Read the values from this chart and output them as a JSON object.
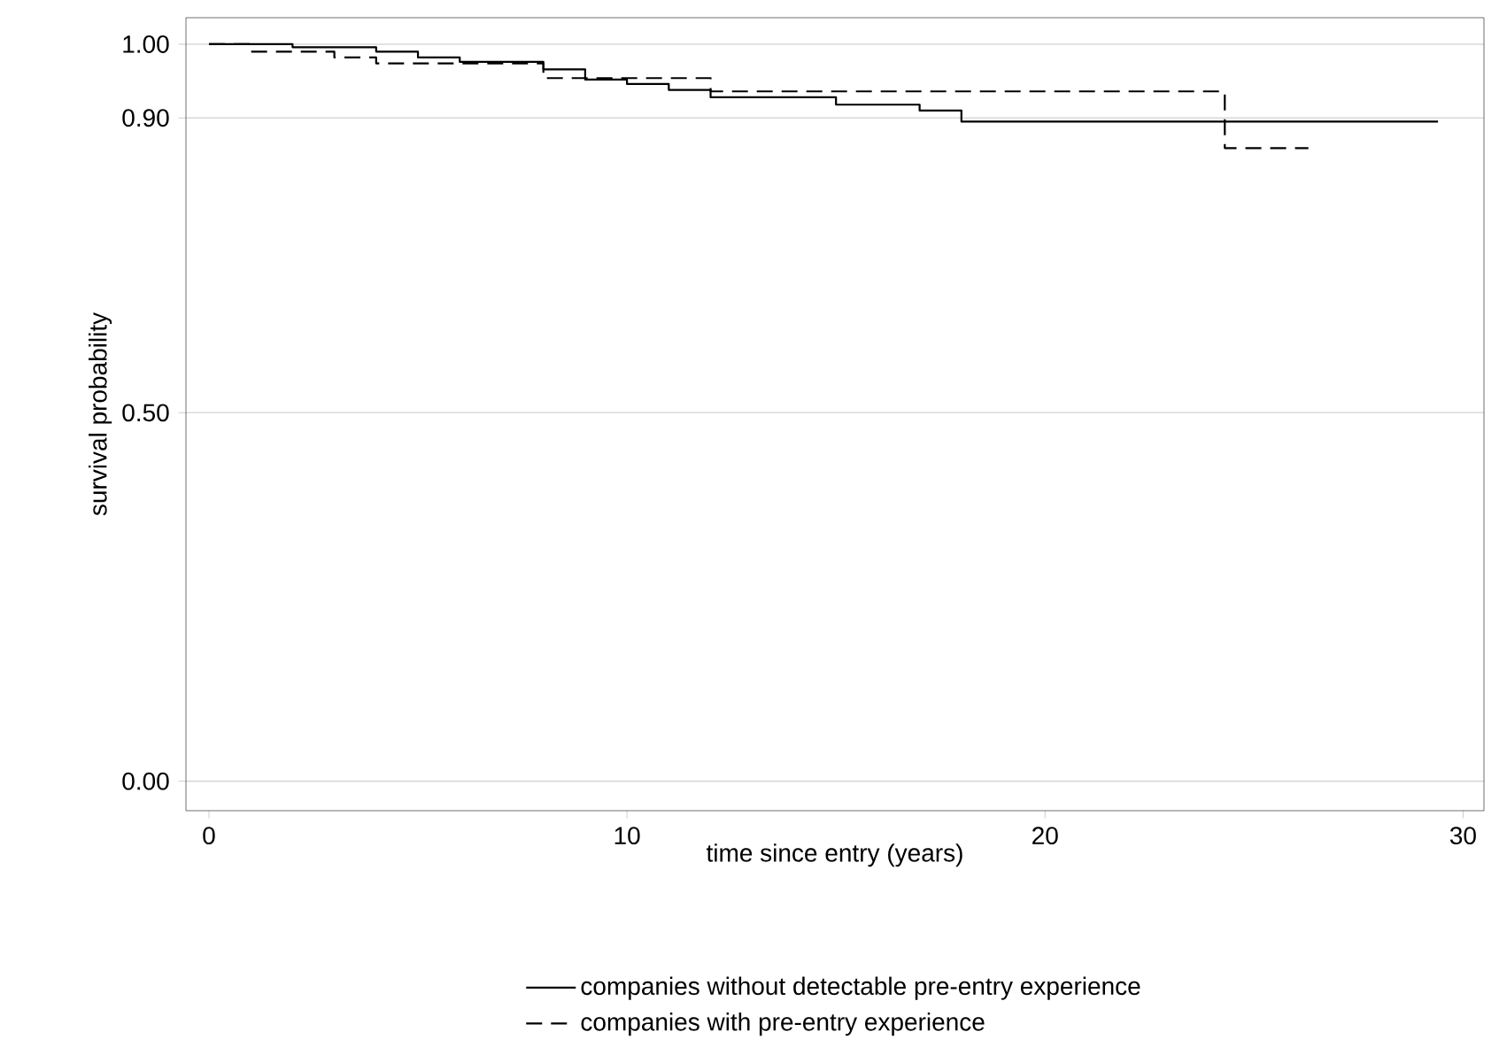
{
  "chart_data": {
    "type": "step",
    "xlabel": "time since entry (years)",
    "ylabel": "survival probability",
    "xlim": [
      -0.55,
      30.5
    ],
    "ylim": [
      -0.04,
      1.036
    ],
    "xticks": [
      0,
      10,
      20,
      30
    ],
    "yticks": [
      {
        "value": 0,
        "label": "0.00"
      },
      {
        "value": 0.5,
        "label": "0.50"
      },
      {
        "value": 0.9,
        "label": "0.90"
      },
      {
        "value": 1,
        "label": "1.00"
      }
    ],
    "grid": "y",
    "legend": "bottom",
    "series": [
      {
        "name": "companies without detectable pre-entry experience",
        "color": "#000000",
        "line_style": "solid",
        "x": [
          0,
          2,
          4,
          5,
          6,
          8,
          9,
          10,
          11,
          12,
          15,
          17,
          18,
          29.4
        ],
        "values": [
          1.0,
          0.996,
          0.99,
          0.982,
          0.976,
          0.966,
          0.952,
          0.946,
          0.938,
          0.928,
          0.918,
          0.91,
          0.895,
          0.895
        ]
      },
      {
        "name": "companies with pre-entry experience",
        "color": "#000000",
        "line_style": "dashed",
        "x": [
          0,
          1,
          3,
          4,
          8,
          12,
          24.3,
          26.3
        ],
        "values": [
          1.0,
          0.99,
          0.982,
          0.974,
          0.954,
          0.936,
          0.859,
          0.859
        ]
      }
    ]
  }
}
